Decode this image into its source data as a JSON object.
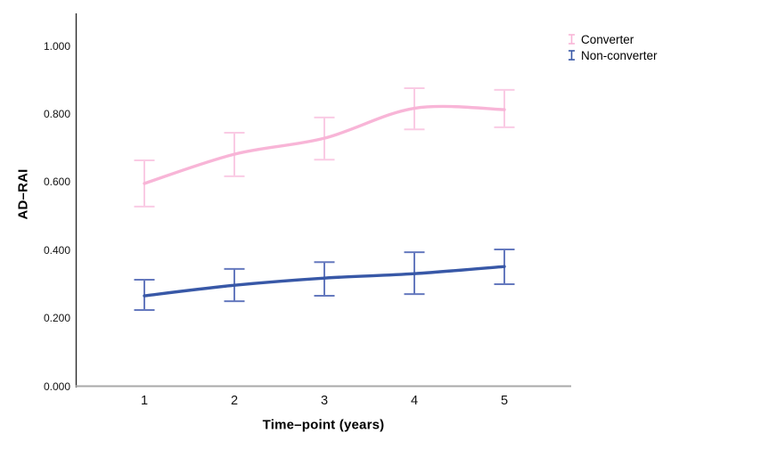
{
  "chart_data": {
    "type": "line",
    "title": "",
    "xlabel": "Time–point (years)",
    "ylabel": "AD–RAI",
    "x": [
      1,
      2,
      3,
      4,
      5
    ],
    "x_tick_labels": [
      "1",
      "2",
      "3",
      "4",
      "5"
    ],
    "y_ticks": [
      0.0,
      0.2,
      0.4,
      0.6,
      0.8,
      1.0
    ],
    "y_tick_labels": [
      "0.000",
      "0.200",
      "0.400",
      "0.600",
      "0.800",
      "1.000"
    ],
    "ylim": [
      0,
      1.1
    ],
    "grid": false,
    "error_bars": true,
    "curve": "smooth",
    "legend_position": "top-right",
    "series": [
      {
        "name": "Converter",
        "color": "#F8B5D7",
        "error_color": "#FACBE4",
        "values": [
          0.597,
          0.683,
          0.73,
          0.818,
          0.814
        ],
        "err_high": [
          0.665,
          0.746,
          0.791,
          0.877,
          0.872
        ],
        "err_low": [
          0.529,
          0.618,
          0.667,
          0.756,
          0.762
        ]
      },
      {
        "name": "Non-converter",
        "color": "#3858A7",
        "error_color": "#6579BE",
        "values": [
          0.267,
          0.298,
          0.319,
          0.332,
          0.353
        ],
        "err_high": [
          0.314,
          0.346,
          0.366,
          0.395,
          0.403
        ],
        "err_low": [
          0.225,
          0.251,
          0.267,
          0.272,
          0.301
        ]
      }
    ],
    "axis_colors": {
      "y_axis": "#2b2b2b",
      "x_axis": "#a8a8a8"
    }
  }
}
